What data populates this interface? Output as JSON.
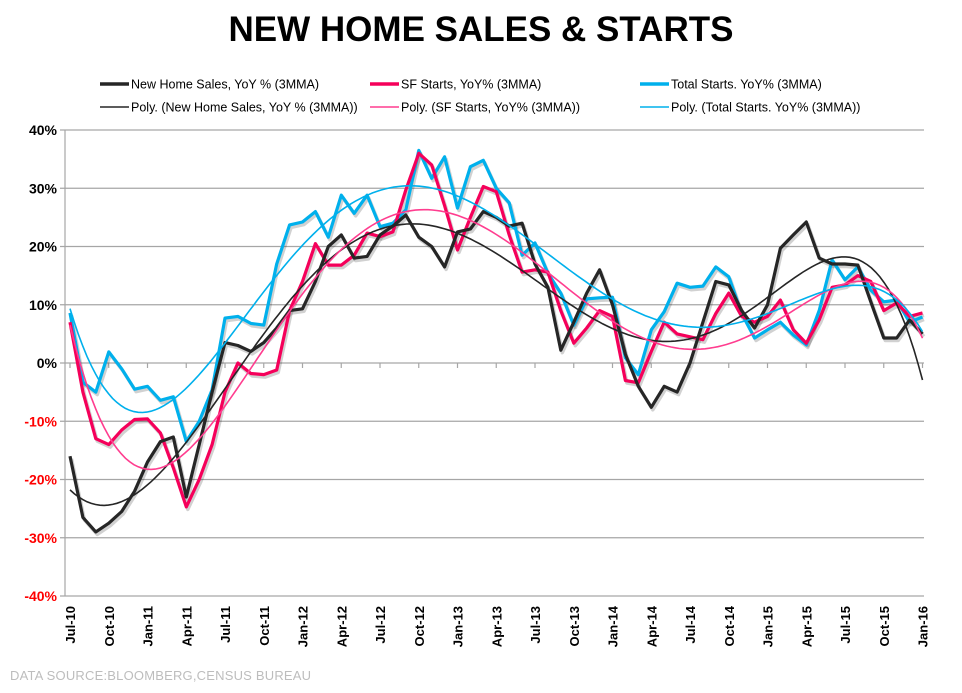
{
  "chart_data": {
    "type": "line",
    "title": "NEW HOME SALES & STARTS",
    "source": "DATA SOURCE:BLOOMBERG,CENSUS  BUREAU",
    "x_start": "Jul-10",
    "x_end": "Jan-16",
    "x_tick_labels": [
      "Jul-10",
      "Oct-10",
      "Jan-11",
      "Apr-11",
      "Jul-11",
      "Oct-11",
      "Jan-12",
      "Apr-12",
      "Jul-12",
      "Oct-12",
      "Jan-13",
      "Apr-13",
      "Jul-13",
      "Oct-13",
      "Jan-14",
      "Apr-14",
      "Jul-14",
      "Oct-14",
      "Jan-15",
      "Apr-15",
      "Jul-15",
      "Oct-15",
      "Jan-16"
    ],
    "y_tick_labels": [
      "40%",
      "30%",
      "20%",
      "10%",
      "0%",
      "-10%",
      "-20%",
      "-30%",
      "-40%"
    ],
    "y_ticks": [
      40,
      30,
      20,
      10,
      0,
      -10,
      -20,
      -30,
      -40
    ],
    "ylim": [
      -40,
      40
    ],
    "grid": true,
    "legend_position": "top",
    "negative_label_color": "#ff0000",
    "series": [
      {
        "name": "New Home Sales, YoY % (3MMA)",
        "color": "#262626",
        "values": [
          -16,
          -26.5,
          -29,
          -27.5,
          -25.5,
          -22,
          -17,
          -13.5,
          -12.7,
          -23,
          -14,
          -5,
          3.5,
          3,
          2,
          3.5,
          6,
          9,
          9.3,
          14,
          20,
          22,
          18,
          18.3,
          22,
          23.5,
          25.4,
          21.6,
          20,
          16.5,
          22.5,
          23,
          26,
          25,
          23.5,
          24,
          17,
          13,
          2.2,
          7,
          12,
          16,
          10,
          1.5,
          -4,
          -7.6,
          -4,
          -5,
          0,
          7,
          14,
          13.4,
          9,
          6,
          10,
          19.7,
          22,
          24.2,
          18,
          17,
          17,
          16.8,
          10.5,
          4.3,
          4.3,
          7.4,
          5
        ]
      },
      {
        "name": "SF Starts, YoY% (3MMA)",
        "color": "#f5005a",
        "values": [
          7,
          -5,
          -13,
          -14,
          -11.5,
          -9.7,
          -9.6,
          -12,
          -18,
          -24.7,
          -20,
          -14,
          -5,
          0,
          -1.8,
          -2,
          -1.2,
          9,
          14,
          20.5,
          16.8,
          16.8,
          18.5,
          22.3,
          21.7,
          22.5,
          29.7,
          36,
          34,
          27,
          19.4,
          25,
          30.3,
          29.4,
          22,
          15.6,
          16,
          15.6,
          9,
          3.4,
          6,
          9,
          8,
          -3,
          -3.4,
          2,
          7,
          5,
          4.5,
          4,
          8.5,
          12,
          8,
          7,
          8,
          10.8,
          5.7,
          3.4,
          7.4,
          13,
          13.4,
          15,
          14,
          9,
          10.3,
          8,
          8.6
        ]
      },
      {
        "name": "Total Starts. YoY% (3MMA)",
        "color": "#00b0ec",
        "values": [
          8.6,
          -3.3,
          -5,
          1.9,
          -1,
          -4.5,
          -4,
          -6.4,
          -5.8,
          -13.5,
          -10,
          -4.6,
          7.7,
          8,
          6.8,
          6.5,
          17,
          23.7,
          24.2,
          26,
          21.6,
          28.8,
          25.7,
          28.8,
          23.4,
          24,
          26.3,
          36.5,
          31.7,
          35.4,
          26.6,
          33.7,
          34.8,
          30,
          27.5,
          18.5,
          20.6,
          15.4,
          12,
          6.5,
          11,
          11.2,
          11.3,
          0.9,
          -2,
          5.7,
          8.8,
          13.7,
          13,
          13.2,
          16.5,
          14.8,
          8.5,
          4.3,
          5.7,
          7,
          4.8,
          3.1,
          9,
          17.7,
          14.3,
          16.5,
          12.5,
          10.5,
          10.8,
          7,
          7.9
        ]
      }
    ],
    "trendlines": [
      {
        "name": "Poly. (New Home Sales, YoY % (3MMA))",
        "of_series": 0,
        "kind": "polynomial",
        "color": "#262626"
      },
      {
        "name": "Poly. (SF Starts, YoY% (3MMA))",
        "of_series": 1,
        "kind": "polynomial",
        "color": "#ff3d8f"
      },
      {
        "name": "Poly. (Total Starts. YoY% (3MMA))",
        "of_series": 2,
        "kind": "polynomial",
        "color": "#00b0ec"
      }
    ]
  }
}
